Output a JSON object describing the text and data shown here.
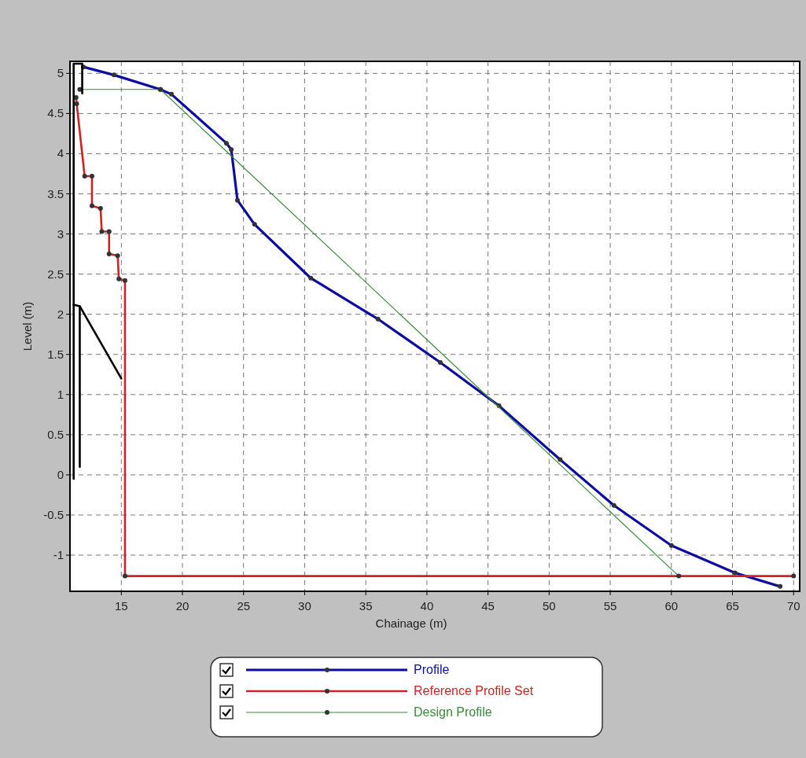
{
  "chart_data": {
    "type": "line",
    "xlabel": "Chainage (m)",
    "ylabel": "Level (m)",
    "xlim": [
      10.8,
      70.5
    ],
    "ylim": [
      -1.45,
      5.15
    ],
    "xticks": [
      15,
      20,
      25,
      30,
      35,
      40,
      45,
      50,
      55,
      60,
      65,
      70
    ],
    "yticks": [
      -1,
      -0.5,
      0,
      0.5,
      1,
      1.5,
      2,
      2.5,
      3,
      3.5,
      4,
      4.5,
      5
    ],
    "grid": true,
    "line_style": "solid",
    "marker": "circle",
    "legend": "bottom",
    "series": [
      {
        "name": "Profile",
        "color": "#0c0ca0",
        "x": [
          11.9,
          14.4,
          18.2,
          19.1,
          23.6,
          24.0,
          24.5,
          25.9,
          30.5,
          36.0,
          41.1,
          45.9,
          50.9,
          55.3,
          60.0,
          65.2,
          68.9
        ],
        "values": [
          5.08,
          4.98,
          4.8,
          4.74,
          4.13,
          4.05,
          3.42,
          3.12,
          2.45,
          1.94,
          1.4,
          0.86,
          0.19,
          -0.38,
          -0.88,
          -1.22,
          -1.39
        ]
      },
      {
        "name": "Reference Profile Set",
        "color": "#d42020",
        "x": [
          11.3,
          11.35,
          12.0,
          12.6,
          12.6,
          13.3,
          13.4,
          14.0,
          14.0,
          14.7,
          14.8,
          15.3,
          15.3,
          70.0
        ],
        "values": [
          4.7,
          4.62,
          3.72,
          3.72,
          3.35,
          3.32,
          3.03,
          3.03,
          2.75,
          2.73,
          2.44,
          2.42,
          -1.26,
          -1.26
        ]
      },
      {
        "name": "Design Profile",
        "color": "#3a8a3a",
        "x": [
          11.6,
          18.2,
          60.6
        ],
        "values": [
          4.8,
          4.8,
          -1.26
        ]
      },
      {
        "color": "#000000",
        "marker": "none",
        "x": [
          11.1,
          11.1,
          11.8,
          11.8
        ],
        "values": [
          -0.05,
          5.12,
          5.12,
          4.75
        ]
      },
      {
        "color": "#000000",
        "marker": "none",
        "x": [
          11.1,
          11.6,
          11.6
        ],
        "values": [
          2.12,
          2.1,
          0.1
        ]
      },
      {
        "color": "#000000",
        "marker": "none",
        "x": [
          11.6,
          15.0
        ],
        "values": [
          2.1,
          1.2
        ]
      }
    ]
  }
}
